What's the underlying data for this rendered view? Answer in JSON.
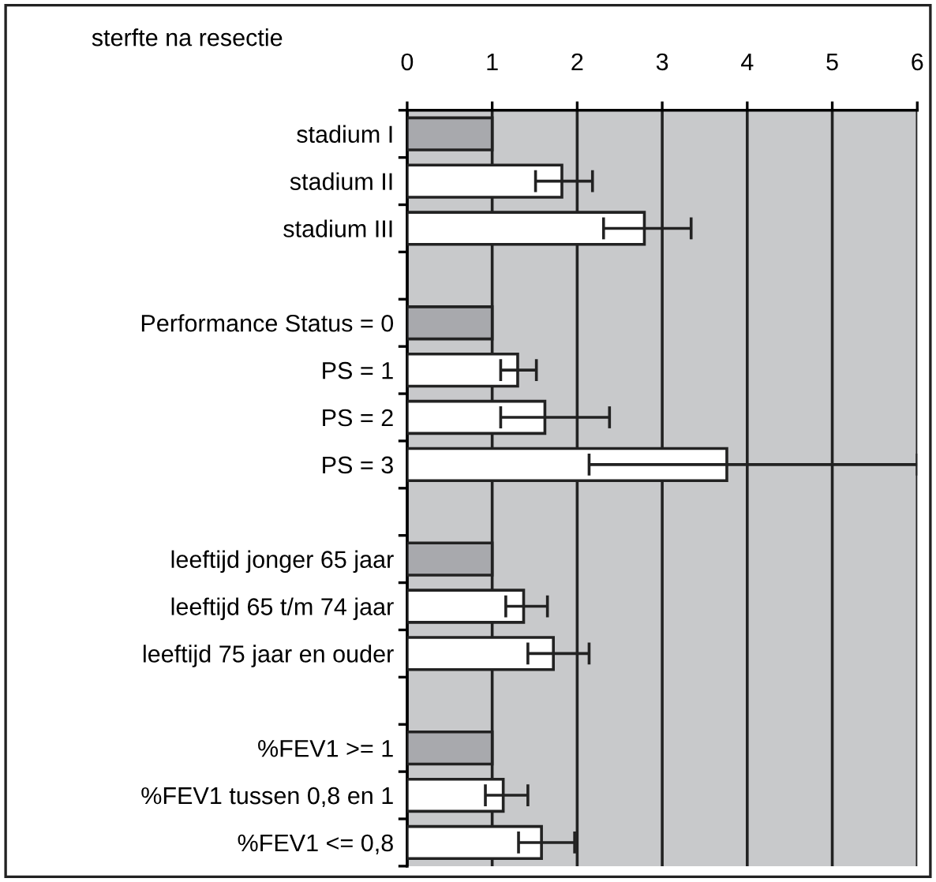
{
  "chart_data": {
    "type": "bar",
    "orientation": "horizontal",
    "title": "sterfte na resectie",
    "categories": [
      "stadium I",
      "stadium II",
      "stadium III",
      null,
      "Performance Status = 0",
      "PS = 1",
      "PS = 2",
      "PS = 3",
      null,
      "leeftijd jonger 65 jaar",
      "leeftijd 65 t/m 74 jaar",
      "leeftijd 75 jaar en ouder",
      null,
      "%FEV1 >= 1",
      "%FEV1 tussen 0,8 en 1",
      "%FEV1 <= 0,8"
    ],
    "values": [
      1,
      1.82,
      2.79,
      null,
      1,
      1.3,
      1.62,
      3.76,
      null,
      1,
      1.37,
      1.72,
      null,
      1,
      1.13,
      1.58
    ],
    "errors": [
      null,
      [
        1.51,
        2.18
      ],
      [
        2.31,
        3.34
      ],
      null,
      null,
      [
        1.1,
        1.52
      ],
      [
        1.1,
        2.38
      ],
      [
        2.14,
        6
      ],
      null,
      null,
      [
        1.16,
        1.65
      ],
      [
        1.42,
        2.14
      ],
      null,
      null,
      [
        0.92,
        1.42
      ],
      [
        1.31,
        1.97
      ]
    ],
    "colors": [
      "#a8a9ad",
      "#ffffff",
      "#ffffff",
      "#ffffff",
      "#a8a9ad",
      "#ffffff",
      "#ffffff",
      "#ffffff",
      "#ffffff",
      "#a8a9ad",
      "#ffffff",
      "#ffffff",
      "#ffffff",
      "#a8a9ad",
      "#ffffff",
      "#ffffff"
    ],
    "xlim": [
      0,
      6
    ],
    "xticks": [
      0,
      1,
      2,
      3,
      4,
      5,
      6
    ],
    "grid": "x"
  }
}
